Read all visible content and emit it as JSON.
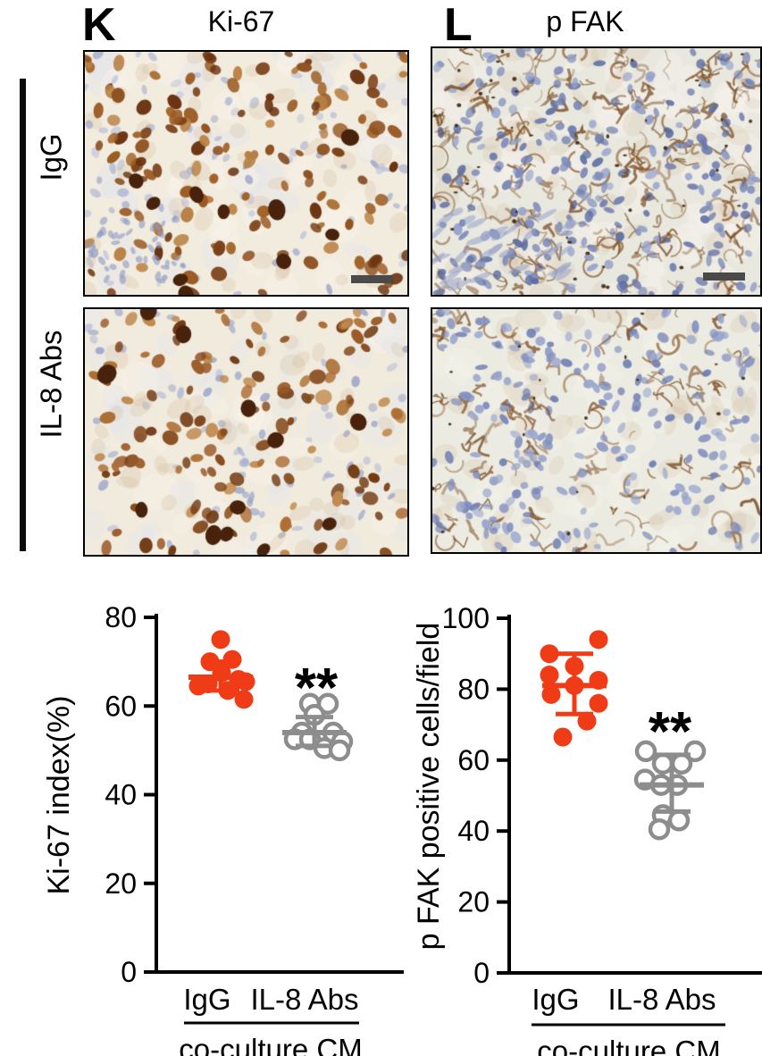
{
  "panels": {
    "K": {
      "letter": "K",
      "title": "Ki-67"
    },
    "L": {
      "letter": "L",
      "title": "p FAK"
    }
  },
  "row_labels": {
    "top": "IgG",
    "bottom": "IL-8 Abs"
  },
  "side_label": "co-culture CM",
  "micrographs": [
    {
      "id": "ki67-igg",
      "panel": "Ki-67",
      "condition": "IgG",
      "stain": "brown nuclear staining",
      "has_scale_bar": true
    },
    {
      "id": "pfak-igg",
      "panel": "p FAK",
      "condition": "IgG",
      "stain": "brown membranous staining",
      "has_scale_bar": true
    },
    {
      "id": "ki67-il8",
      "panel": "Ki-67",
      "condition": "IL-8 Abs",
      "stain": "brown nuclear staining",
      "has_scale_bar": false
    },
    {
      "id": "pfak-il8",
      "panel": "p FAK",
      "condition": "IL-8 Abs",
      "stain": "brown membranous staining",
      "has_scale_bar": false
    }
  ],
  "colors": {
    "accent_red": "#f03b17",
    "gray": "#8d8d8d",
    "axis": "#000000",
    "scale_bar": "#4a4a4a"
  },
  "chart_data": [
    {
      "type": "scatter",
      "ylabel": "Ki-67 index(%)",
      "ylim": [
        0,
        80
      ],
      "yticks": [
        0,
        20,
        40,
        60,
        80
      ],
      "categories": [
        "IgG",
        "IL-8 Abs"
      ],
      "xlabel": "co-culture CM",
      "significance": {
        "label": "**",
        "group": "IL-8 Abs"
      },
      "series": [
        {
          "name": "IgG",
          "marker": "filled-circle",
          "color": "#f03b17",
          "values": [
            75,
            70.5,
            70,
            67.5,
            66,
            65.5,
            65,
            64.5,
            63.5,
            61.5
          ],
          "dx": [
            0,
            13,
            -12,
            1,
            20,
            28,
            -14,
            -25,
            8,
            26
          ],
          "mean": 66.5,
          "err_high": 70,
          "err_low": 63.5
        },
        {
          "name": "IL-8 Abs",
          "marker": "open-circle",
          "color": "#8d8d8d",
          "values": [
            60.5,
            60.5,
            58,
            54,
            54,
            52.5,
            52.5,
            52,
            50.5,
            50
          ],
          "dx": [
            -5,
            15,
            0,
            -14,
            21,
            -22,
            -5,
            31,
            11,
            28
          ],
          "mean": 54,
          "err_high": 57.5,
          "err_low": 51
        }
      ]
    },
    {
      "type": "scatter",
      "ylabel": "p FAK positive cells/field",
      "ylim": [
        0,
        100
      ],
      "yticks": [
        0,
        20,
        40,
        60,
        80,
        100
      ],
      "categories": [
        "IgG",
        "IL-8 Abs"
      ],
      "xlabel": "co-culture CM",
      "significance": {
        "label": "**",
        "group": "IL-8 Abs"
      },
      "series": [
        {
          "name": "IgG",
          "marker": "filled-circle",
          "color": "#f03b17",
          "values": [
            94,
            90,
            86.5,
            84,
            82.5,
            81,
            78.5,
            76,
            71,
            66.5
          ],
          "dx": [
            27,
            -28,
            0,
            -28,
            27,
            0,
            -26,
            27,
            14,
            -13
          ],
          "mean": 81,
          "err_high": 90,
          "err_low": 73
        },
        {
          "name": "IL-8 Abs",
          "marker": "open-circle",
          "color": "#8d8d8d",
          "values": [
            62.5,
            62.5,
            59,
            59,
            54.5,
            53,
            53,
            44.5,
            43,
            40.5
          ],
          "dx": [
            -29,
            26,
            -10,
            11,
            -30,
            -12,
            6,
            -10,
            8,
            -14
          ],
          "mean": 53,
          "err_high": 61.5,
          "err_low": 45.5
        }
      ]
    }
  ]
}
